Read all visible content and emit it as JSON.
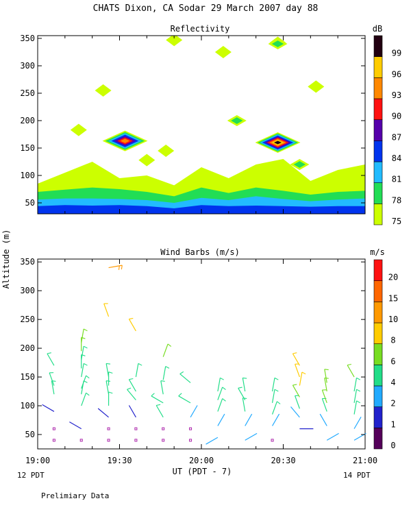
{
  "page": {
    "title": "CHATS Dixon, CA   Sodar  29 March 2007   day  88",
    "ylabel": "Altitude (m)",
    "xlabel": "UT  (PDT - 7)",
    "left_note": "12 PDT",
    "right_note": "14 PDT",
    "footer": "Prelimiary Data"
  },
  "chart_data": [
    {
      "type": "heatmap",
      "title": "Reflectivity",
      "ylim": [
        30,
        355
      ],
      "xlim": [
        "19:00",
        "21:00"
      ],
      "x_ticks": [
        "19:00",
        "19:30",
        "20:00",
        "20:30",
        "21:00"
      ],
      "y_ticks": [
        50,
        100,
        150,
        200,
        250,
        300,
        350
      ],
      "grid": false,
      "colorbar": {
        "label": "dB",
        "ticks": [
          "75",
          "78",
          "81",
          "84",
          "87",
          "90",
          "93",
          "96",
          "99"
        ],
        "colors": [
          "#ccff00",
          "#22dd55",
          "#22bbff",
          "#0033ee",
          "#5500aa",
          "#ff1111",
          "#ff8800",
          "#ffcc00",
          "#220011"
        ]
      },
      "profile_times_min": [
        0,
        10,
        20,
        30,
        40,
        50,
        60,
        70,
        80,
        90,
        100,
        110,
        120
      ],
      "bands": [
        {
          "db": 84,
          "top": [
            44,
            46,
            45,
            46,
            44,
            40,
            46,
            44,
            45,
            44,
            43,
            44,
            44
          ]
        },
        {
          "db": 81,
          "top": [
            56,
            58,
            58,
            57,
            55,
            50,
            59,
            55,
            62,
            57,
            53,
            56,
            58
          ]
        },
        {
          "db": 78,
          "top": [
            70,
            74,
            78,
            75,
            70,
            62,
            78,
            68,
            78,
            72,
            65,
            70,
            72
          ]
        },
        {
          "db": 75,
          "top": [
            85,
            105,
            125,
            95,
            100,
            82,
            115,
            95,
            120,
            130,
            90,
            110,
            120
          ]
        }
      ],
      "patches": [
        {
          "t": 15,
          "alt": 183,
          "db": 75
        },
        {
          "t": 47,
          "alt": 145,
          "db": 75
        },
        {
          "t": 40,
          "alt": 128,
          "db": 75
        },
        {
          "t": 24,
          "alt": 255,
          "db": 75
        },
        {
          "t": 50,
          "alt": 347,
          "db": 75
        },
        {
          "t": 68,
          "alt": 325,
          "db": 75
        },
        {
          "t": 88,
          "alt": 342,
          "db": 75
        },
        {
          "t": 102,
          "alt": 262,
          "db": 75
        },
        {
          "t": 73,
          "alt": 200,
          "db": 78
        },
        {
          "t": 88,
          "alt": 340,
          "db": 78
        },
        {
          "t": 96,
          "alt": 120,
          "db": 78
        },
        {
          "t": 32,
          "alt": 163,
          "db": 93
        },
        {
          "t": 88,
          "alt": 160,
          "db": 99
        }
      ]
    },
    {
      "type": "scatter",
      "title": "Wind Barbs (m/s)",
      "ylim": [
        25,
        355
      ],
      "xlim": [
        "19:00",
        "21:00"
      ],
      "x_ticks": [
        "19:00",
        "19:30",
        "20:00",
        "20:30",
        "21:00"
      ],
      "y_ticks": [
        50,
        100,
        150,
        200,
        250,
        300,
        350
      ],
      "grid": false,
      "colorbar": {
        "label": "m/s",
        "ticks": [
          "0",
          "1",
          "2",
          "4",
          "6",
          "8",
          "10",
          "15",
          "20"
        ],
        "colors": [
          "#55005a",
          "#2222cc",
          "#22aaff",
          "#22dd88",
          "#77dd22",
          "#ffcc00",
          "#ff9900",
          "#ff6600",
          "#ff1111"
        ]
      },
      "profile_times_min": [
        6,
        16,
        26,
        36,
        46,
        56,
        66,
        76,
        86,
        96,
        106,
        116
      ],
      "winds": [
        [
          [
            40,
            0,
            0
          ],
          [
            60,
            0,
            0
          ],
          [
            90,
            300,
            1
          ],
          [
            120,
            350,
            4
          ],
          [
            135,
            340,
            4
          ],
          [
            170,
            330,
            5
          ]
        ],
        [
          [
            40,
            0,
            0
          ],
          [
            60,
            300,
            1
          ],
          [
            100,
            20,
            4
          ],
          [
            120,
            10,
            4
          ],
          [
            130,
            20,
            5
          ],
          [
            150,
            10,
            5
          ],
          [
            165,
            0,
            5
          ],
          [
            180,
            10,
            5
          ],
          [
            195,
            0,
            6
          ],
          [
            210,
            10,
            6
          ]
        ],
        [
          [
            40,
            0,
            0
          ],
          [
            60,
            0,
            0
          ],
          [
            80,
            310,
            1
          ],
          [
            100,
            0,
            5
          ],
          [
            120,
            350,
            5
          ],
          [
            135,
            0,
            5
          ],
          [
            150,
            350,
            5
          ],
          [
            255,
            340,
            9
          ],
          [
            340,
            80,
            10
          ]
        ],
        [
          [
            40,
            0,
            0
          ],
          [
            60,
            0,
            0
          ],
          [
            80,
            330,
            1
          ],
          [
            110,
            320,
            5
          ],
          [
            125,
            330,
            5
          ],
          [
            150,
            10,
            5
          ],
          [
            230,
            330,
            8
          ]
        ],
        [
          [
            40,
            0,
            0
          ],
          [
            60,
            0,
            0
          ],
          [
            80,
            330,
            4
          ],
          [
            105,
            300,
            5
          ],
          [
            120,
            350,
            5
          ],
          [
            145,
            10,
            5
          ],
          [
            185,
            20,
            6
          ]
        ],
        [
          [
            40,
            0,
            0
          ],
          [
            60,
            0,
            0
          ],
          [
            80,
            30,
            2
          ],
          [
            105,
            300,
            4
          ],
          [
            140,
            310,
            4
          ]
        ],
        [
          [
            45,
            240,
            3
          ],
          [
            65,
            30,
            2
          ],
          [
            90,
            20,
            4
          ],
          [
            110,
            20,
            4
          ],
          [
            125,
            10,
            4
          ]
        ],
        [
          [
            40,
            60,
            3
          ],
          [
            65,
            30,
            2
          ],
          [
            90,
            350,
            4
          ],
          [
            110,
            330,
            4
          ],
          [
            125,
            350,
            4
          ]
        ],
        [
          [
            40,
            0,
            0
          ],
          [
            65,
            30,
            2
          ],
          [
            85,
            20,
            4
          ],
          [
            105,
            10,
            4
          ],
          [
            125,
            10,
            4
          ]
        ],
        [
          [
            60,
            90,
            1
          ],
          [
            80,
            320,
            2
          ],
          [
            95,
            340,
            5
          ],
          [
            115,
            330,
            7
          ],
          [
            135,
            10,
            8
          ],
          [
            150,
            340,
            8
          ],
          [
            170,
            330,
            8
          ]
        ],
        [
          [
            40,
            60,
            3
          ],
          [
            65,
            330,
            2
          ],
          [
            90,
            340,
            5
          ],
          [
            105,
            340,
            6
          ],
          [
            125,
            350,
            7
          ],
          [
            140,
            350,
            7
          ]
        ],
        [
          [
            40,
            60,
            3
          ],
          [
            60,
            30,
            3
          ],
          [
            85,
            10,
            4
          ],
          [
            105,
            10,
            4
          ],
          [
            125,
            10,
            4
          ],
          [
            150,
            330,
            7
          ]
        ]
      ]
    }
  ]
}
